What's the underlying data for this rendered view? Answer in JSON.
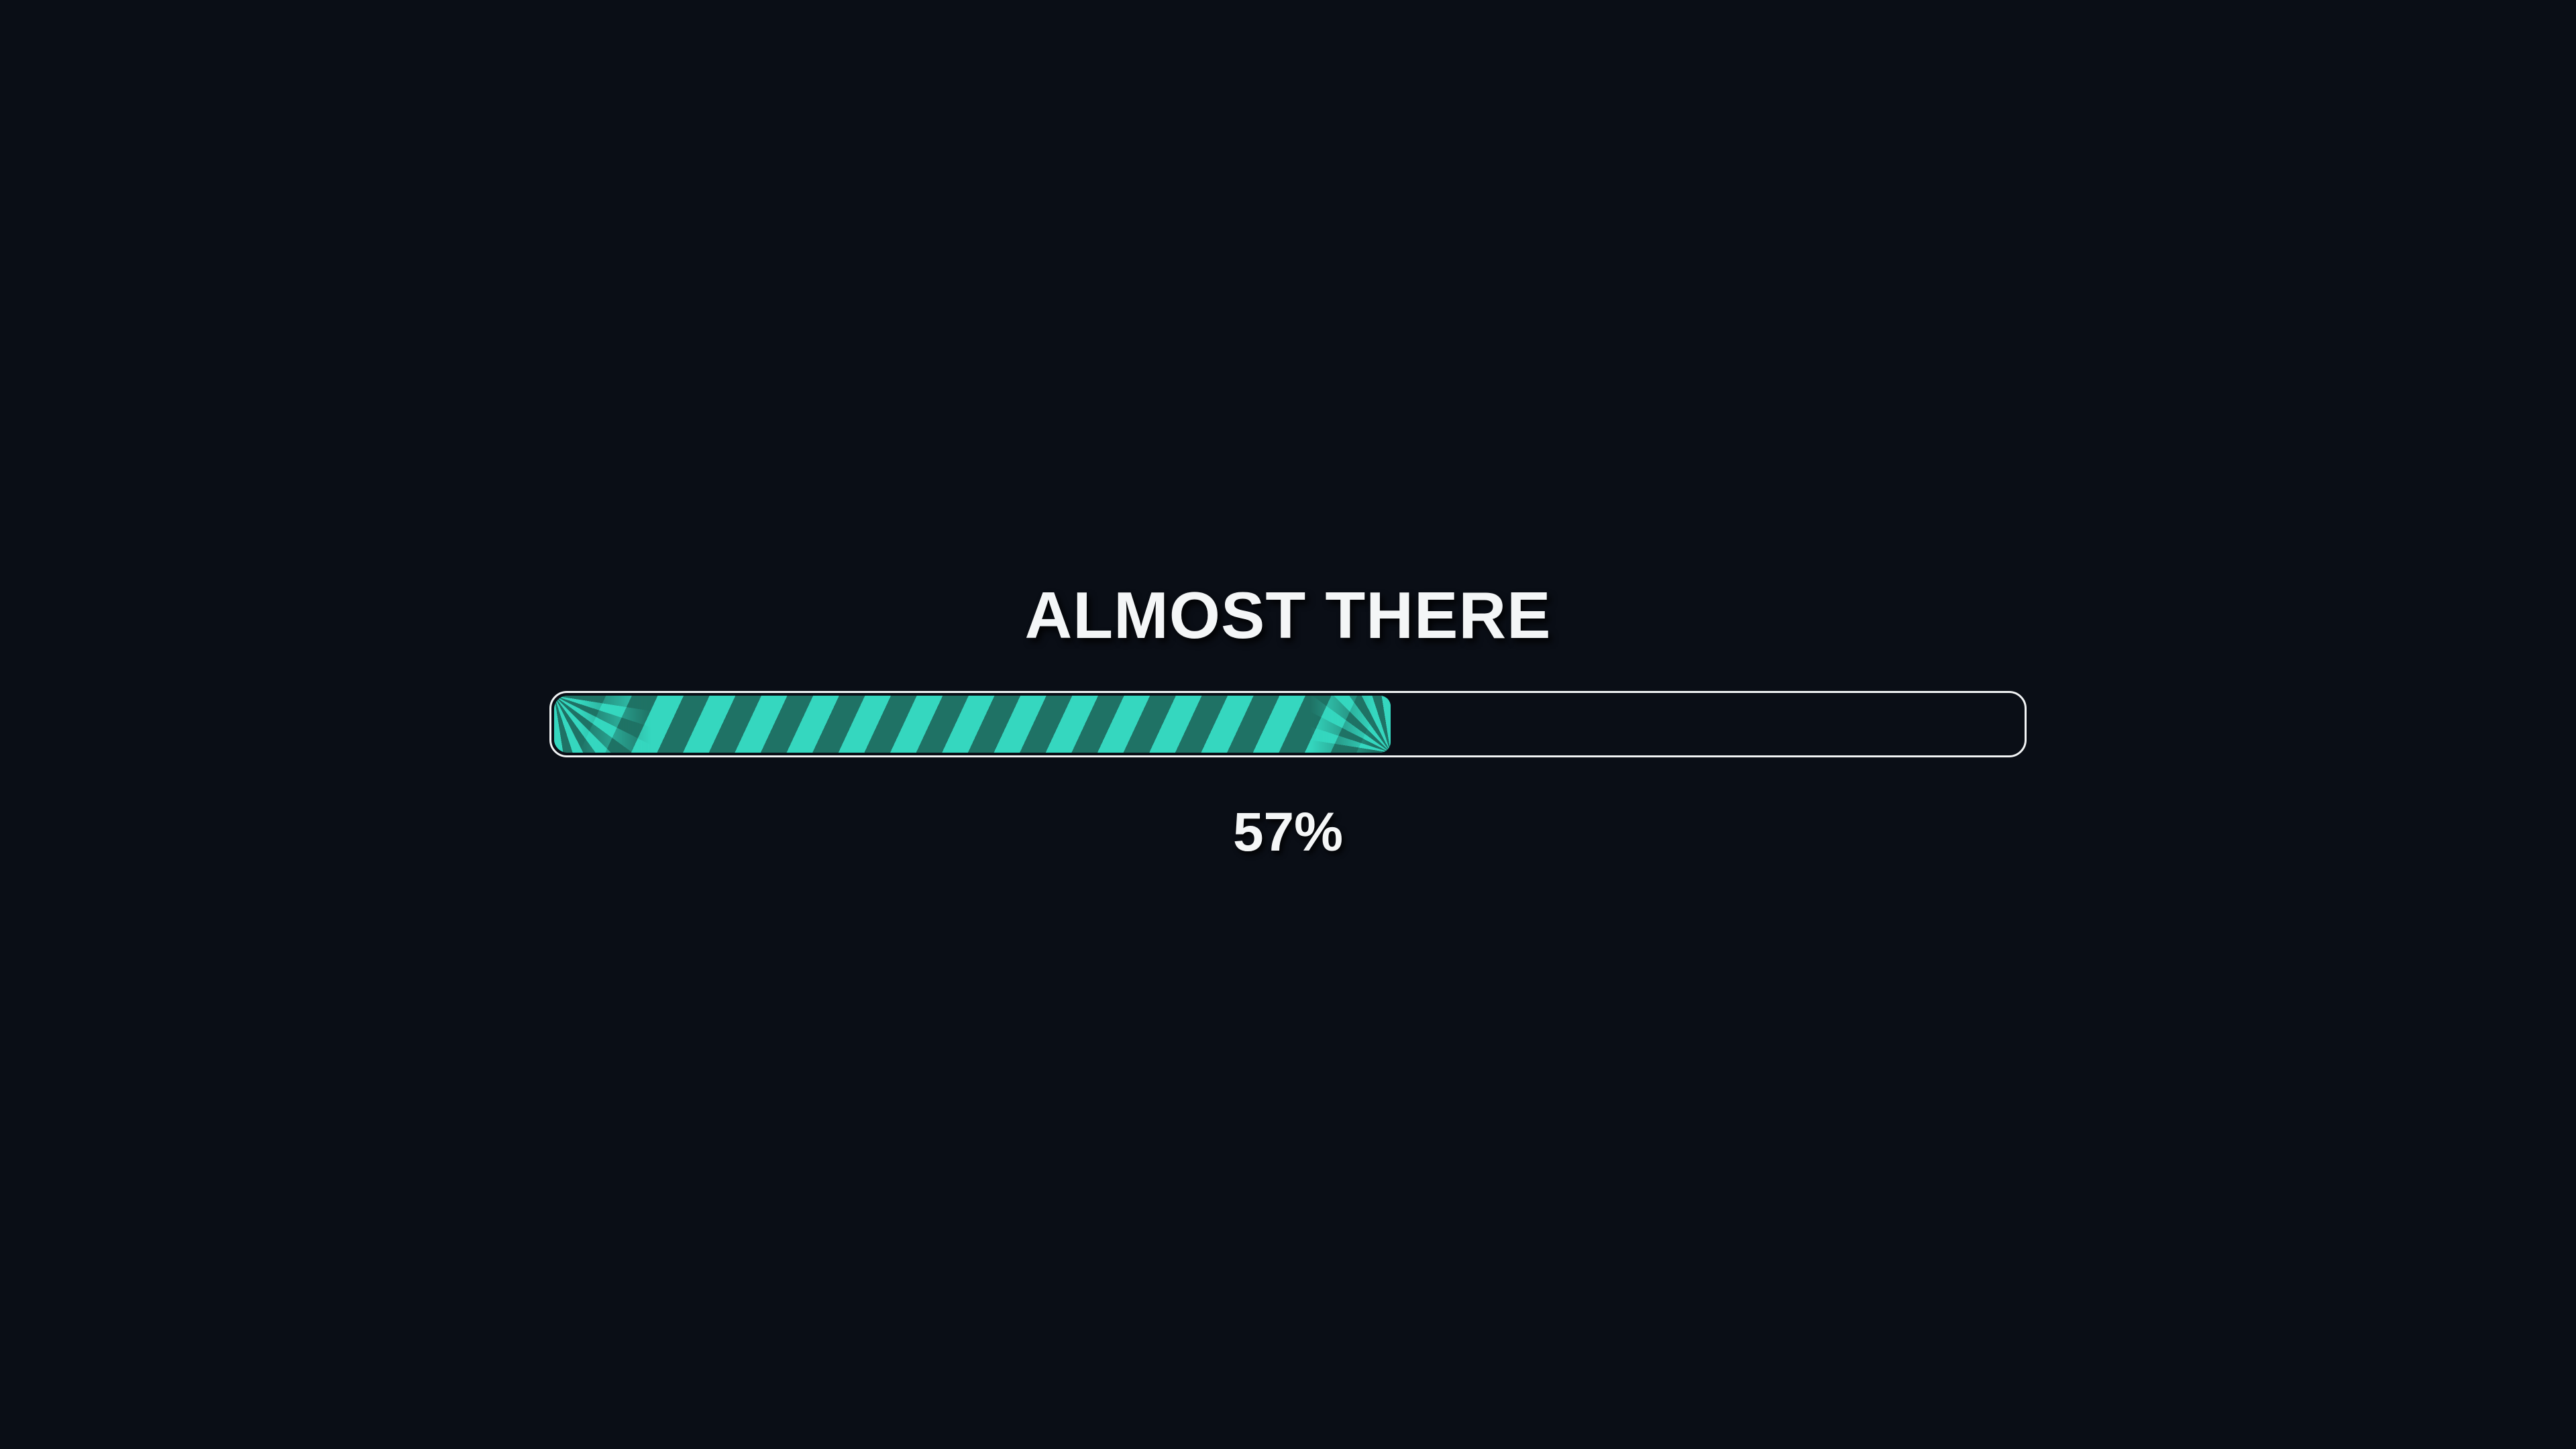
{
  "screen": {
    "background_color": "#0a0e16"
  },
  "loader": {
    "title": "ALMOST THERE",
    "percent_value": 57,
    "percent_label": "57%",
    "colors": {
      "stripe_light": "#35d7bf",
      "stripe_dark": "#1f7265",
      "track_border": "#f2f4f5",
      "track_background": "#0a0e16",
      "text": "#f4f6f7"
    }
  }
}
